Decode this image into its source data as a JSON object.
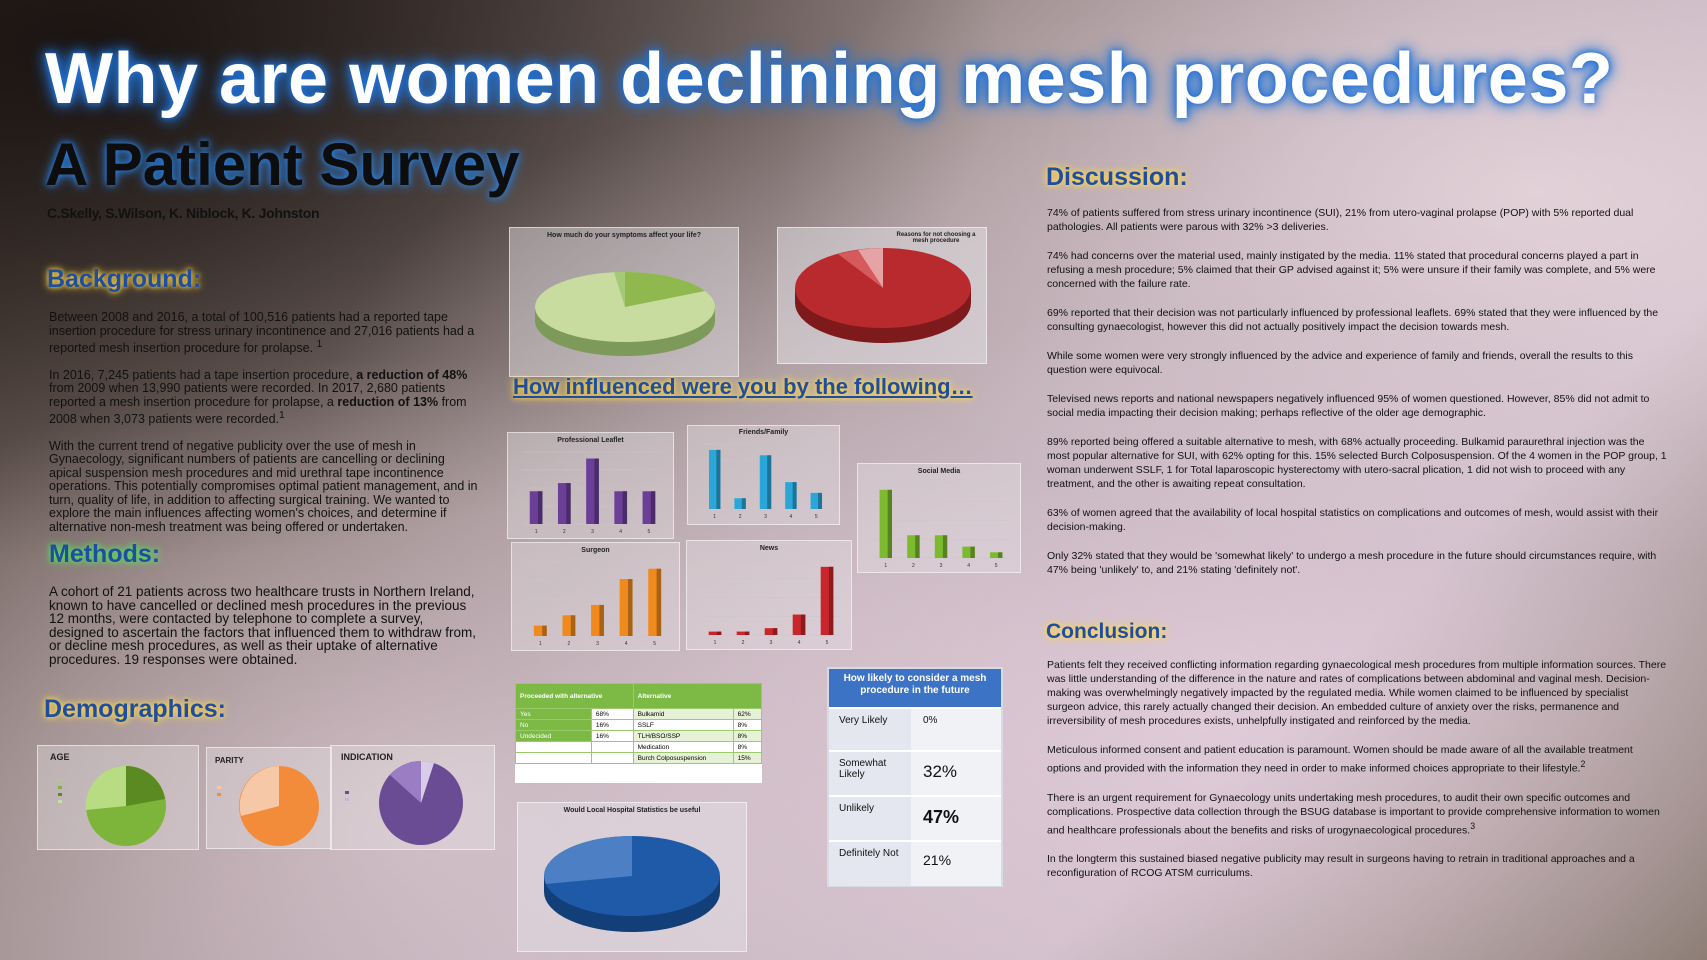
{
  "title": {
    "line1": "Why are women declining mesh procedures?",
    "line2": "A Patient Survey",
    "authors": "C.Skelly, S.Wilson, K. Niblock, K. Johnston"
  },
  "background": {
    "heading": "Background:",
    "p1": "Between 2008 and 2016, a total of 100,516 patients had a reported tape insertion procedure for stress urinary incontinence and 27,016 patients had a reported mesh insertion procedure for prolapse.",
    "p1_sup": "1",
    "p2_a": "In 2016, 7,245 patients had a tape insertion procedure,",
    "p2_b": "a reduction of 48%",
    "p2_c": "from 2009 when 13,990 patients were recorded.   In 2017, 2,680 patients reported a mesh insertion procedure for prolapse, a",
    "p2_d": "reduction of 13%",
    "p2_e": "from 2008 when 3,073 patients were recorded.",
    "p2_sup": "1",
    "p3": "With the current trend of negative publicity over the use of mesh in Gynaecology, significant numbers of patients are cancelling or declining apical suspension mesh procedures and mid urethral tape incontinence operations.  This  potentially compromises optimal patient management, and in turn, quality of life, in addition to affecting surgical training. We wanted to explore the main influences affecting women's choices, and determine if alternative non-mesh treatment was being offered or undertaken."
  },
  "methods": {
    "heading": "Methods:",
    "p1": "A cohort of 21 patients across two healthcare trusts in Northern Ireland, known to have cancelled or declined mesh procedures in the previous 12 months, were contacted by telephone to complete a survey, designed to ascertain the factors that influenced them to withdraw from, or decline mesh procedures, as well as their uptake of alternative procedures.   19 responses were obtained."
  },
  "demographics": {
    "heading": "Demographics:",
    "age_label": "AGE",
    "parity_label": "PARITY",
    "indication_label": "INDICATION",
    "colors": {
      "age_main": "#7db43a",
      "age_alt": "#a9d36a",
      "parity_main": "#f28c3a",
      "parity_alt": "#f7c8a8",
      "ind_main": "#6a4c94",
      "ind_alt": "#c6b6da"
    }
  },
  "charts": {
    "symptoms_title": "How much do your symptoms affect your life?",
    "reasons_title": "Reasons for not choosing a mesh procedure",
    "influence_heading": "How influenced were you by the following…",
    "prof_leaflet": "Professional Leaflet",
    "friends_family": "Friends/Family",
    "social_media": "Social Media",
    "surgeon": "Surgeon",
    "news": "News",
    "hospital_stats_title": "Would Local Hospital Statistics be useful"
  },
  "chart_data": [
    {
      "type": "bar",
      "title": "Professional Leaflet",
      "categories": [
        "1",
        "2",
        "3",
        "4",
        "5"
      ],
      "values": [
        4,
        5,
        8,
        4,
        4
      ],
      "color": "#6b3f98"
    },
    {
      "type": "bar",
      "title": "Friends/Family",
      "categories": [
        "1",
        "2",
        "3",
        "4",
        "5"
      ],
      "values": [
        11,
        2,
        10,
        5,
        3
      ],
      "color": "#2ba6d9"
    },
    {
      "type": "bar",
      "title": "Social Media",
      "categories": [
        "1",
        "2",
        "3",
        "4",
        "5"
      ],
      "values": [
        12,
        4,
        4,
        2,
        1
      ],
      "color": "#7cba2f"
    },
    {
      "type": "bar",
      "title": "Surgeon",
      "categories": [
        "1",
        "2",
        "3",
        "4",
        "5"
      ],
      "values": [
        2,
        4,
        6,
        11,
        13
      ],
      "color": "#f08a1e"
    },
    {
      "type": "bar",
      "title": "News",
      "categories": [
        "1",
        "2",
        "3",
        "4",
        "5"
      ],
      "values": [
        0.5,
        0.5,
        1,
        3,
        10
      ],
      "color": "#c8262a"
    }
  ],
  "alt_table": {
    "col1": "Proceeded with alternative",
    "col2": "Alternative",
    "rows": [
      {
        "a": "Yes",
        "b": "68%",
        "c": "Bulkamid",
        "d": "62%"
      },
      {
        "a": "No",
        "b": "16%",
        "c": "SSLF",
        "d": "8%"
      },
      {
        "a": "Undecided",
        "b": "16%",
        "c": "TLH/BSO/SSP",
        "d": "8%"
      },
      {
        "a": "",
        "b": "",
        "c": "Medication",
        "d": "8%"
      },
      {
        "a": "",
        "b": "",
        "c": "Burch Colposuspension",
        "d": "15%"
      }
    ]
  },
  "likely_table": {
    "heading": "How likely to consider a mesh procedure in the future",
    "rows": [
      {
        "label": "Very Likely",
        "value": "0%"
      },
      {
        "label": "Somewhat Likely",
        "value": "32%"
      },
      {
        "label": "Unlikely",
        "value": "47%"
      },
      {
        "label": "Definitely Not",
        "value": "21%"
      }
    ]
  },
  "discussion": {
    "heading": "Discussion:",
    "p1": "74% of patients suffered from stress urinary incontinence (SUI), 21% from utero-vaginal prolapse (POP) with 5% reported dual pathologies.  All patients were parous with 32% >3 deliveries.",
    "p2": "74% had concerns over the material used, mainly instigated by the media.  11% stated that procedural concerns played a part in refusing a mesh procedure; 5% claimed that their GP advised against it; 5% were unsure if their family was complete, and 5% were concerned with the failure rate.",
    "p3": "69% reported that their decision was not particularly influenced by professional leaflets.  69% stated that they were influenced by the consulting gynaecologist, however this did not actually positively impact the decision towards mesh.",
    "p4": "While some women were very strongly influenced by the advice and experience of family and friends, overall the results to this question were equivocal.",
    "p5": "Televised news reports and national newspapers negatively influenced 95% of women questioned.   However, 85% did not admit to social media impacting their decision making; perhaps reflective of the older age demographic.",
    "p6": "89% reported being offered a suitable alternative to mesh, with 68% actually proceeding.   Bulkamid paraurethral injection was the most popular alternative for SUI, with 62% opting for this.   15% selected Burch Colposuspension.   Of the 4 women in the POP group, 1 woman underwent SSLF, 1 for Total laparoscopic hysterectomy with utero-sacral plication, 1 did not wish to proceed with any treatment, and the other is awaiting repeat consultation.",
    "p7": "63% of women agreed that the availability of local hospital statistics on complications and outcomes of mesh, would assist with their decision-making.",
    "p8": "Only 32% stated that they would be 'somewhat likely' to undergo a mesh procedure in the future should circumstances require, with 47% being 'unlikely' to, and 21% stating 'definitely not'."
  },
  "conclusion": {
    "heading": "Conclusion:",
    "p1": "Patients felt they received conflicting information regarding gynaecological mesh procedures from multiple information sources.  There was little understanding of the difference in the nature and rates of complications between abdominal and vaginal mesh.  Decision-making was overwhelmingly negatively impacted by the regulated media.  While women claimed to be influenced by specialist surgeon advice, this rarely actually changed their decision.  An embedded culture of anxiety over the risks, permanence and irreversibility of mesh procedures exists, unhelpfully instigated and reinforced by the media.",
    "p2": "Meticulous informed consent and patient education is paramount.  Women should be made aware of all the available treatment options and provided with the information they need in order to make informed choices appropriate to their lifestyle.",
    "p2_sup": "2",
    "p3": "There is an urgent requirement for Gynaecology units undertaking mesh procedures, to audit their own specific outcomes and complications.  Prospective data collection through the BSUG database is important to provide comprehensive information to women and healthcare professionals about the benefits and risks of urogynaecological procedures.",
    "p3_sup": "3",
    "p4": "In the longterm this sustained biased negative publicity may result in surgeons having to retrain in traditional approaches and a reconfiguration of RCOG ATSM curriculums."
  }
}
